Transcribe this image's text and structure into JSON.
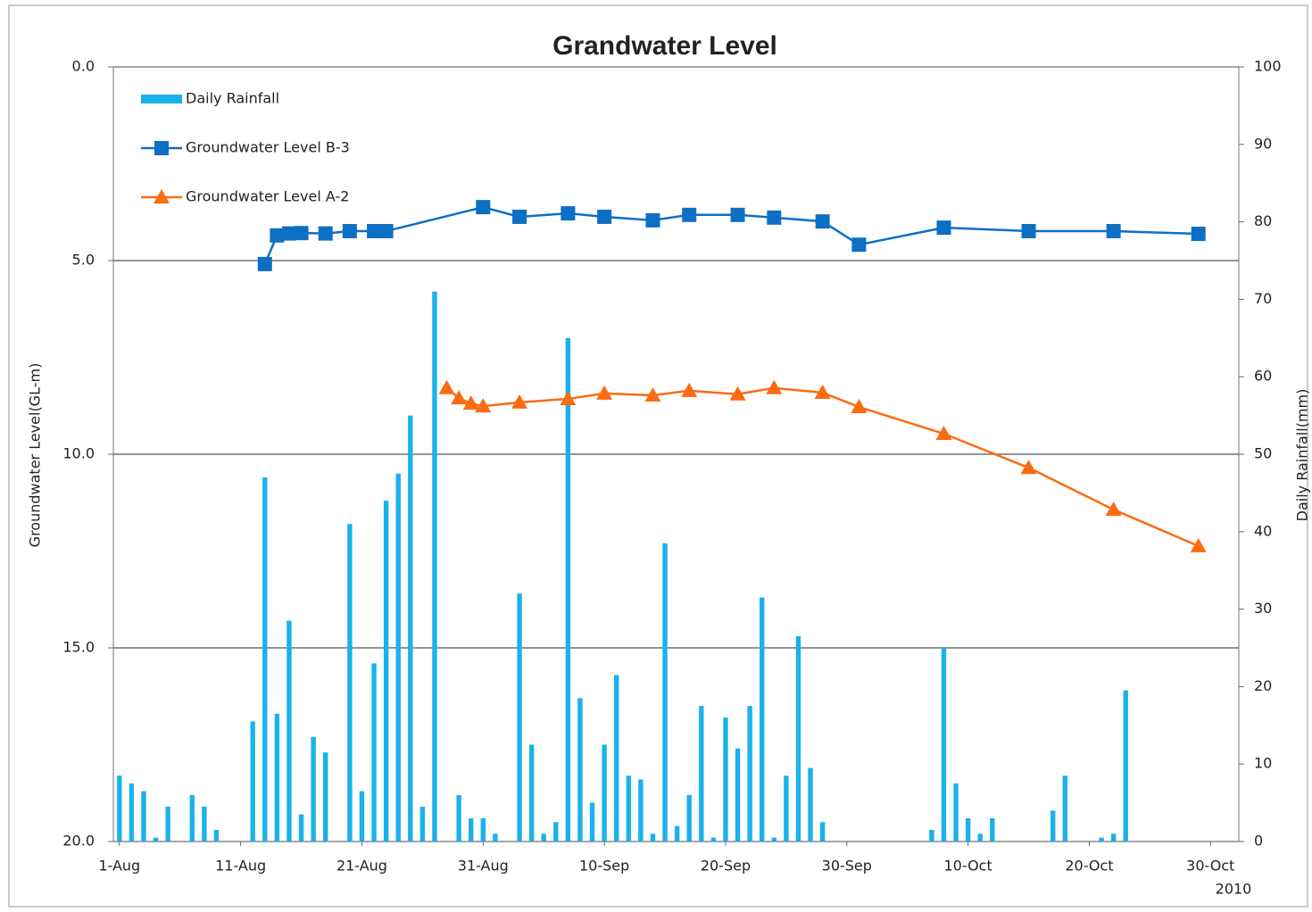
{
  "chart_data": {
    "type": "bar-line",
    "title": "Grandwater Level",
    "y_label": "Groundwater Level(GL-m)",
    "y2_label": "Daily Rainfall(mm)",
    "year_label": "2010",
    "xlim": [
      "2010-07-31T12:00:00Z",
      "2010-11-01T08:00:00Z"
    ],
    "xticks": [
      {
        "value": "2010-08-01",
        "label": "1-Aug"
      },
      {
        "value": "2010-08-11",
        "label": "11-Aug"
      },
      {
        "value": "2010-08-21",
        "label": "21-Aug"
      },
      {
        "value": "2010-08-31",
        "label": "31-Aug"
      },
      {
        "value": "2010-09-10",
        "label": "10-Sep"
      },
      {
        "value": "2010-09-20",
        "label": "20-Sep"
      },
      {
        "value": "2010-09-30",
        "label": "30-Sep"
      },
      {
        "value": "2010-10-10",
        "label": "10-Oct"
      },
      {
        "value": "2010-10-20",
        "label": "20-Oct"
      },
      {
        "value": "2010-10-30",
        "label": "30-Oct"
      }
    ],
    "ylim": [
      0,
      20
    ],
    "y_reversed": true,
    "yticks": [
      {
        "value": 0,
        "label": "0.0"
      },
      {
        "value": 5,
        "label": "5.0"
      },
      {
        "value": 10,
        "label": "10.0"
      },
      {
        "value": 15,
        "label": "15.0"
      },
      {
        "value": 20,
        "label": "20.0"
      }
    ],
    "y2lim": [
      0,
      100
    ],
    "y2ticks": [
      0,
      10,
      20,
      30,
      40,
      50,
      60,
      70,
      80,
      90,
      100
    ],
    "grid": true,
    "series": [
      {
        "name": "Daily Rainfall",
        "type": "bar",
        "axis": "y2",
        "color": "#1ab2ea",
        "x": [
          "2010-08-01",
          "2010-08-02",
          "2010-08-03",
          "2010-08-04",
          "2010-08-05",
          "2010-08-07",
          "2010-08-08",
          "2010-08-09",
          "2010-08-12",
          "2010-08-13",
          "2010-08-14",
          "2010-08-15",
          "2010-08-16",
          "2010-08-17",
          "2010-08-18",
          "2010-08-20",
          "2010-08-21",
          "2010-08-22",
          "2010-08-23",
          "2010-08-24",
          "2010-08-25",
          "2010-08-26",
          "2010-08-27",
          "2010-08-29",
          "2010-08-30",
          "2010-08-31",
          "2010-09-01",
          "2010-09-03",
          "2010-09-04",
          "2010-09-05",
          "2010-09-06",
          "2010-09-07",
          "2010-09-08",
          "2010-09-09",
          "2010-09-10",
          "2010-09-11",
          "2010-09-12",
          "2010-09-13",
          "2010-09-14",
          "2010-09-15",
          "2010-09-16",
          "2010-09-17",
          "2010-09-18",
          "2010-09-19",
          "2010-09-20",
          "2010-09-21",
          "2010-09-22",
          "2010-09-23",
          "2010-09-24",
          "2010-09-25",
          "2010-09-26",
          "2010-09-27",
          "2010-09-28",
          "2010-10-07",
          "2010-10-08",
          "2010-10-09",
          "2010-10-10",
          "2010-10-11",
          "2010-10-12",
          "2010-10-17",
          "2010-10-18",
          "2010-10-21",
          "2010-10-22",
          "2010-10-23"
        ],
        "values": [
          8.5,
          7.5,
          6.5,
          0.5,
          4.5,
          6,
          4.5,
          1.5,
          15.5,
          47,
          16.5,
          28.5,
          3.5,
          13.5,
          11.5,
          41,
          6.5,
          23,
          44,
          47.5,
          55,
          4.5,
          71,
          6,
          3,
          3,
          1,
          32,
          12.5,
          1,
          2.5,
          65,
          18.5,
          5,
          12.5,
          21.5,
          8.5,
          8,
          1,
          38.5,
          2,
          6,
          17.5,
          0.5,
          16,
          12,
          17.5,
          31.5,
          0.5,
          8.5,
          26.5,
          9.5,
          2.5,
          1.5,
          25,
          7.5,
          3,
          1,
          3,
          4,
          8.5,
          0.5,
          1,
          19.5
        ]
      },
      {
        "name": "Groundwater Level B-3",
        "type": "line",
        "marker": "square",
        "color": "#0d6fc4",
        "x": [
          "2010-08-13",
          "2010-08-14",
          "2010-08-15",
          "2010-08-16",
          "2010-08-18",
          "2010-08-20",
          "2010-08-22",
          "2010-08-23",
          "2010-08-31",
          "2010-09-03",
          "2010-09-07",
          "2010-09-10",
          "2010-09-14",
          "2010-09-17",
          "2010-09-21",
          "2010-09-24",
          "2010-09-28",
          "2010-10-01",
          "2010-10-08",
          "2010-10-15",
          "2010-10-22",
          "2010-10-29"
        ],
        "values": [
          5.09,
          4.35,
          4.3,
          4.29,
          4.3,
          4.24,
          4.24,
          4.24,
          3.62,
          3.87,
          3.78,
          3.87,
          3.96,
          3.82,
          3.82,
          3.89,
          3.99,
          4.59,
          4.15,
          4.24,
          4.24,
          4.31
        ]
      },
      {
        "name": "Groundwater Level A-2",
        "type": "line",
        "marker": "triangle",
        "color": "#fb6b12",
        "x": [
          "2010-08-28",
          "2010-08-29",
          "2010-08-30",
          "2010-08-31",
          "2010-09-03",
          "2010-09-07",
          "2010-09-10",
          "2010-09-14",
          "2010-09-17",
          "2010-09-21",
          "2010-09-24",
          "2010-09-28",
          "2010-10-01",
          "2010-10-08",
          "2010-10-15",
          "2010-10-22",
          "2010-10-29"
        ],
        "values": [
          8.29,
          8.55,
          8.69,
          8.76,
          8.66,
          8.57,
          8.43,
          8.48,
          8.36,
          8.45,
          8.29,
          8.41,
          8.78,
          9.47,
          10.35,
          11.43,
          12.37
        ]
      }
    ]
  }
}
